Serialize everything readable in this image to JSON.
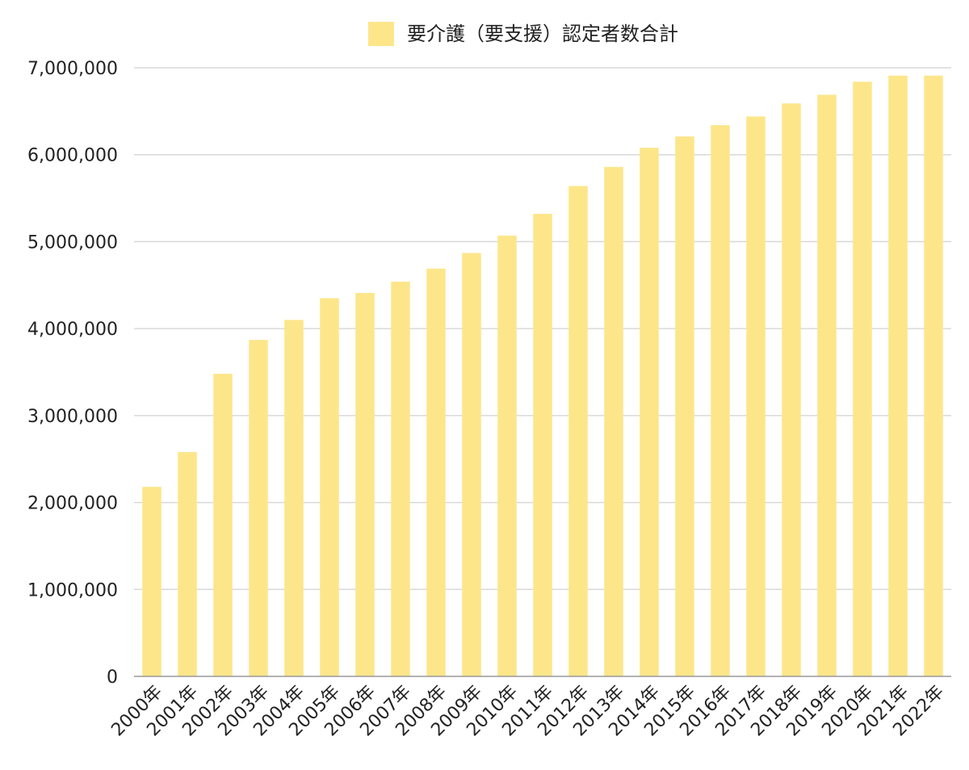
{
  "chart_data": {
    "type": "bar",
    "categories": [
      "2000年",
      "2001年",
      "2002年",
      "2003年",
      "2004年",
      "2005年",
      "2006年",
      "2007年",
      "2008年",
      "2009年",
      "2010年",
      "2011年",
      "2012年",
      "2013年",
      "2014年",
      "2015年",
      "2016年",
      "2017年",
      "2018年",
      "2019年",
      "2020年",
      "2021年",
      "2022年"
    ],
    "series": [
      {
        "name": "要介護（要支援）認定者数合計",
        "color": "#fde68a",
        "values": [
          2180000,
          2580000,
          3480000,
          3870000,
          4100000,
          4350000,
          4410000,
          4540000,
          4690000,
          4870000,
          5070000,
          5320000,
          5640000,
          5860000,
          6080000,
          6210000,
          6340000,
          6440000,
          6590000,
          6690000,
          6840000,
          6910000,
          6910000
        ]
      }
    ],
    "xlabel": "",
    "ylabel": "",
    "ylim": [
      0,
      7000000
    ],
    "y_ticks": [
      0,
      1000000,
      2000000,
      3000000,
      4000000,
      5000000,
      6000000,
      7000000
    ],
    "y_tick_labels": [
      "0",
      "1,000,000",
      "2,000,000",
      "3,000,000",
      "4,000,000",
      "5,000,000",
      "6,000,000",
      "7,000,000"
    ],
    "grid": true,
    "legend_position": "top",
    "colors": {
      "grid": "#d9d9d9",
      "axis": "#999999",
      "text": "#222222"
    }
  }
}
